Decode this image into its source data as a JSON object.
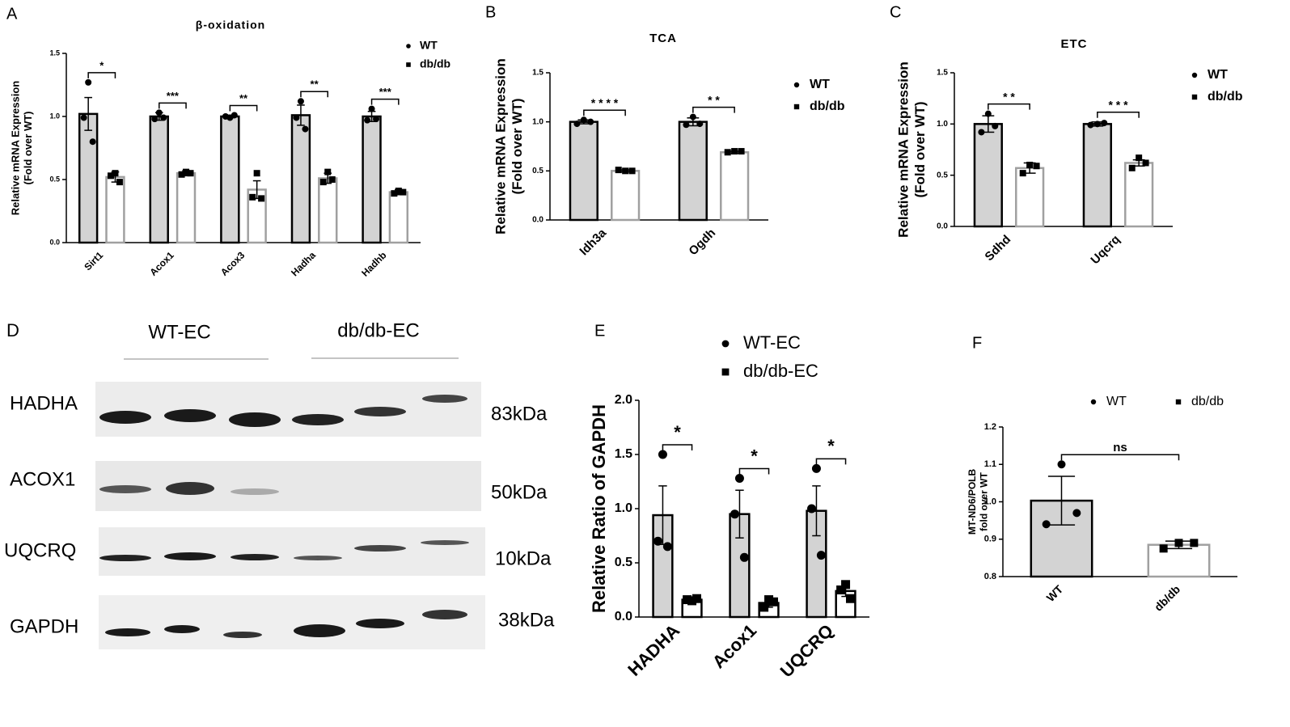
{
  "chart_data": [
    {
      "type": "bar",
      "panel": "A",
      "title": "β-oxidation",
      "ylabel": [
        "Relative mRNA Expression",
        "(Fold over WT)"
      ],
      "categories": [
        "Sirt1",
        "Acox1",
        "Acox3",
        "Hadha",
        "Hadhb"
      ],
      "series": [
        {
          "name": "WT",
          "color": "#d3d3d3",
          "edgecolor": "#000000",
          "marker": "circle",
          "values": [
            1.02,
            1.0,
            1.0,
            1.01,
            1.0
          ],
          "errors": [
            0.13,
            0.03,
            0.01,
            0.08,
            0.04
          ],
          "points": [
            [
              1.27,
              0.99,
              0.8
            ],
            [
              1.03,
              0.98,
              0.99
            ],
            [
              0.99,
              1.0,
              1.01
            ],
            [
              1.12,
              0.99,
              0.9
            ],
            [
              1.06,
              0.97,
              0.98
            ]
          ]
        },
        {
          "name": "db/db",
          "color": "#ffffff",
          "edgecolor": "#a0a0a0",
          "marker": "square",
          "values": [
            0.52,
            0.55,
            0.42,
            0.51,
            0.4
          ],
          "errors": [
            0.04,
            0.02,
            0.07,
            0.04,
            0.02
          ],
          "points": [
            [
              0.55,
              0.53,
              0.48
            ],
            [
              0.56,
              0.54,
              0.55
            ],
            [
              0.55,
              0.36,
              0.35
            ],
            [
              0.56,
              0.48,
              0.5
            ],
            [
              0.41,
              0.39,
              0.4
            ]
          ]
        }
      ],
      "significance": [
        "*",
        "***",
        "**",
        "**",
        "***"
      ],
      "ylim": [
        0,
        1.5
      ],
      "yticks": [
        {
          "value": 0,
          "label": "0.0"
        },
        {
          "value": 0.5,
          "label": "0.5"
        },
        {
          "value": 1,
          "label": "1.0"
        },
        {
          "value": 1.5,
          "label": "1.5"
        }
      ],
      "legend": "upper right"
    },
    {
      "type": "bar",
      "panel": "B",
      "title": "TCA",
      "ylabel": [
        "Relative mRNA Expression",
        "(Fold over WT)"
      ],
      "categories": [
        "Idh3a",
        "Ogdh"
      ],
      "series": [
        {
          "name": "WT",
          "color": "#d3d3d3",
          "edgecolor": "#000000",
          "marker": "circle",
          "values": [
            1.0,
            1.0
          ],
          "errors": [
            0.02,
            0.04
          ],
          "points": [
            [
              1.02,
              0.98,
              1.0
            ],
            [
              1.05,
              0.97,
              0.98
            ]
          ]
        },
        {
          "name": "db/db",
          "color": "#ffffff",
          "edgecolor": "#a0a0a0",
          "marker": "square",
          "values": [
            0.5,
            0.69
          ],
          "errors": [
            0.01,
            0.01
          ],
          "points": [
            [
              0.5,
              0.51,
              0.5
            ],
            [
              0.7,
              0.69,
              0.7
            ]
          ]
        }
      ],
      "significance": [
        "* * * *",
        "* *"
      ],
      "ylim": [
        0,
        1.5
      ],
      "yticks": [
        {
          "value": 0,
          "label": "0.0"
        },
        {
          "value": 0.5,
          "label": "0.5"
        },
        {
          "value": 1,
          "label": "1.0"
        },
        {
          "value": 1.5,
          "label": "1.5"
        }
      ],
      "legend": "upper right"
    },
    {
      "type": "bar",
      "panel": "C",
      "title": "ETC",
      "ylabel": [
        "Relative mRNA Expression",
        "(Fold over WT)"
      ],
      "categories": [
        "Sdhd",
        "Uqcrq"
      ],
      "series": [
        {
          "name": "WT",
          "color": "#d3d3d3",
          "edgecolor": "#000000",
          "marker": "circle",
          "values": [
            1.0,
            1.0
          ],
          "errors": [
            0.08,
            0.02
          ],
          "points": [
            [
              1.1,
              0.92,
              0.98
            ],
            [
              1.0,
              0.99,
              1.01
            ]
          ]
        },
        {
          "name": "db/db",
          "color": "#ffffff",
          "edgecolor": "#a0a0a0",
          "marker": "square",
          "values": [
            0.57,
            0.62
          ],
          "errors": [
            0.05,
            0.03
          ],
          "points": [
            [
              0.6,
              0.52,
              0.59
            ],
            [
              0.67,
              0.57,
              0.62
            ]
          ]
        }
      ],
      "significance": [
        "* *",
        "* * *"
      ],
      "ylim": [
        0,
        1.5
      ],
      "yticks": [
        {
          "value": 0,
          "label": "0.0"
        },
        {
          "value": 0.5,
          "label": "0.5"
        },
        {
          "value": 1,
          "label": "1.0"
        },
        {
          "value": 1.5,
          "label": "1.5"
        }
      ],
      "legend": "upper right"
    },
    {
      "type": "bar",
      "panel": "E",
      "ylabel": [
        "Relative Ratio of GAPDH"
      ],
      "categories": [
        "HADHA",
        "Acox1",
        "UQCRQ"
      ],
      "series": [
        {
          "name": "WT-EC",
          "color": "#d3d3d3",
          "edgecolor": "#000000",
          "marker": "circle",
          "values": [
            0.94,
            0.95,
            0.98
          ],
          "errors": [
            0.27,
            0.22,
            0.23
          ],
          "points": [
            [
              1.5,
              0.7,
              0.65
            ],
            [
              1.28,
              0.95,
              0.55
            ],
            [
              1.37,
              1.0,
              0.57
            ]
          ]
        },
        {
          "name": "db/db-EC",
          "color": "#ffffff",
          "edgecolor": "#000000",
          "marker": "square",
          "values": [
            0.16,
            0.13,
            0.24
          ],
          "errors": [
            0.02,
            0.04,
            0.05
          ],
          "points": [
            [
              0.15,
              0.16,
              0.17
            ],
            [
              0.16,
              0.09,
              0.14
            ],
            [
              0.3,
              0.25,
              0.17
            ]
          ]
        }
      ],
      "significance": [
        "*",
        "*",
        "*"
      ],
      "ylim": [
        0,
        2
      ],
      "yticks": [
        {
          "value": 0,
          "label": "0.0"
        },
        {
          "value": 0.5,
          "label": "0.5"
        },
        {
          "value": 1,
          "label": "1.0"
        },
        {
          "value": 1.5,
          "label": "1.5"
        },
        {
          "value": 2,
          "label": "2.0"
        }
      ],
      "legend": "upper center"
    },
    {
      "type": "bar",
      "panel": "F",
      "ylabel": [
        "MT-ND6/POLB",
        "fold over WT"
      ],
      "categories": [
        "WT",
        "db/db"
      ],
      "series": [
        {
          "name": "WT",
          "color": "#d3d3d3",
          "edgecolor": "#000000",
          "marker": "circle",
          "values": [
            1.003,
            null
          ],
          "errors": [
            0.065,
            null
          ],
          "points": [
            [
              1.1,
              0.94,
              0.97
            ],
            null
          ]
        },
        {
          "name": "db/db",
          "color": "#ffffff",
          "edgecolor": "#a0a0a0",
          "marker": "square",
          "values": [
            null,
            0.885
          ],
          "errors": [
            null,
            0.01
          ],
          "points": [
            null,
            [
              0.89,
              0.875,
              0.89
            ]
          ]
        }
      ],
      "comparison": "ns",
      "ylim": [
        0.8,
        1.2
      ],
      "yticks": [
        0.8,
        0.9,
        {
          "value": 1,
          "label": "1.0"
        },
        1.1,
        1.2
      ],
      "legend": "upper center"
    }
  ],
  "blot": {
    "panel": "D",
    "groups": [
      "WT-EC",
      "db/db-EC"
    ],
    "bands": [
      {
        "name": "HADHA",
        "size": "83kDa"
      },
      {
        "name": "ACOX1",
        "size": "50kDa"
      },
      {
        "name": "UQCRQ",
        "size": "10kDa"
      },
      {
        "name": "GAPDH",
        "size": "38kDa"
      }
    ]
  }
}
